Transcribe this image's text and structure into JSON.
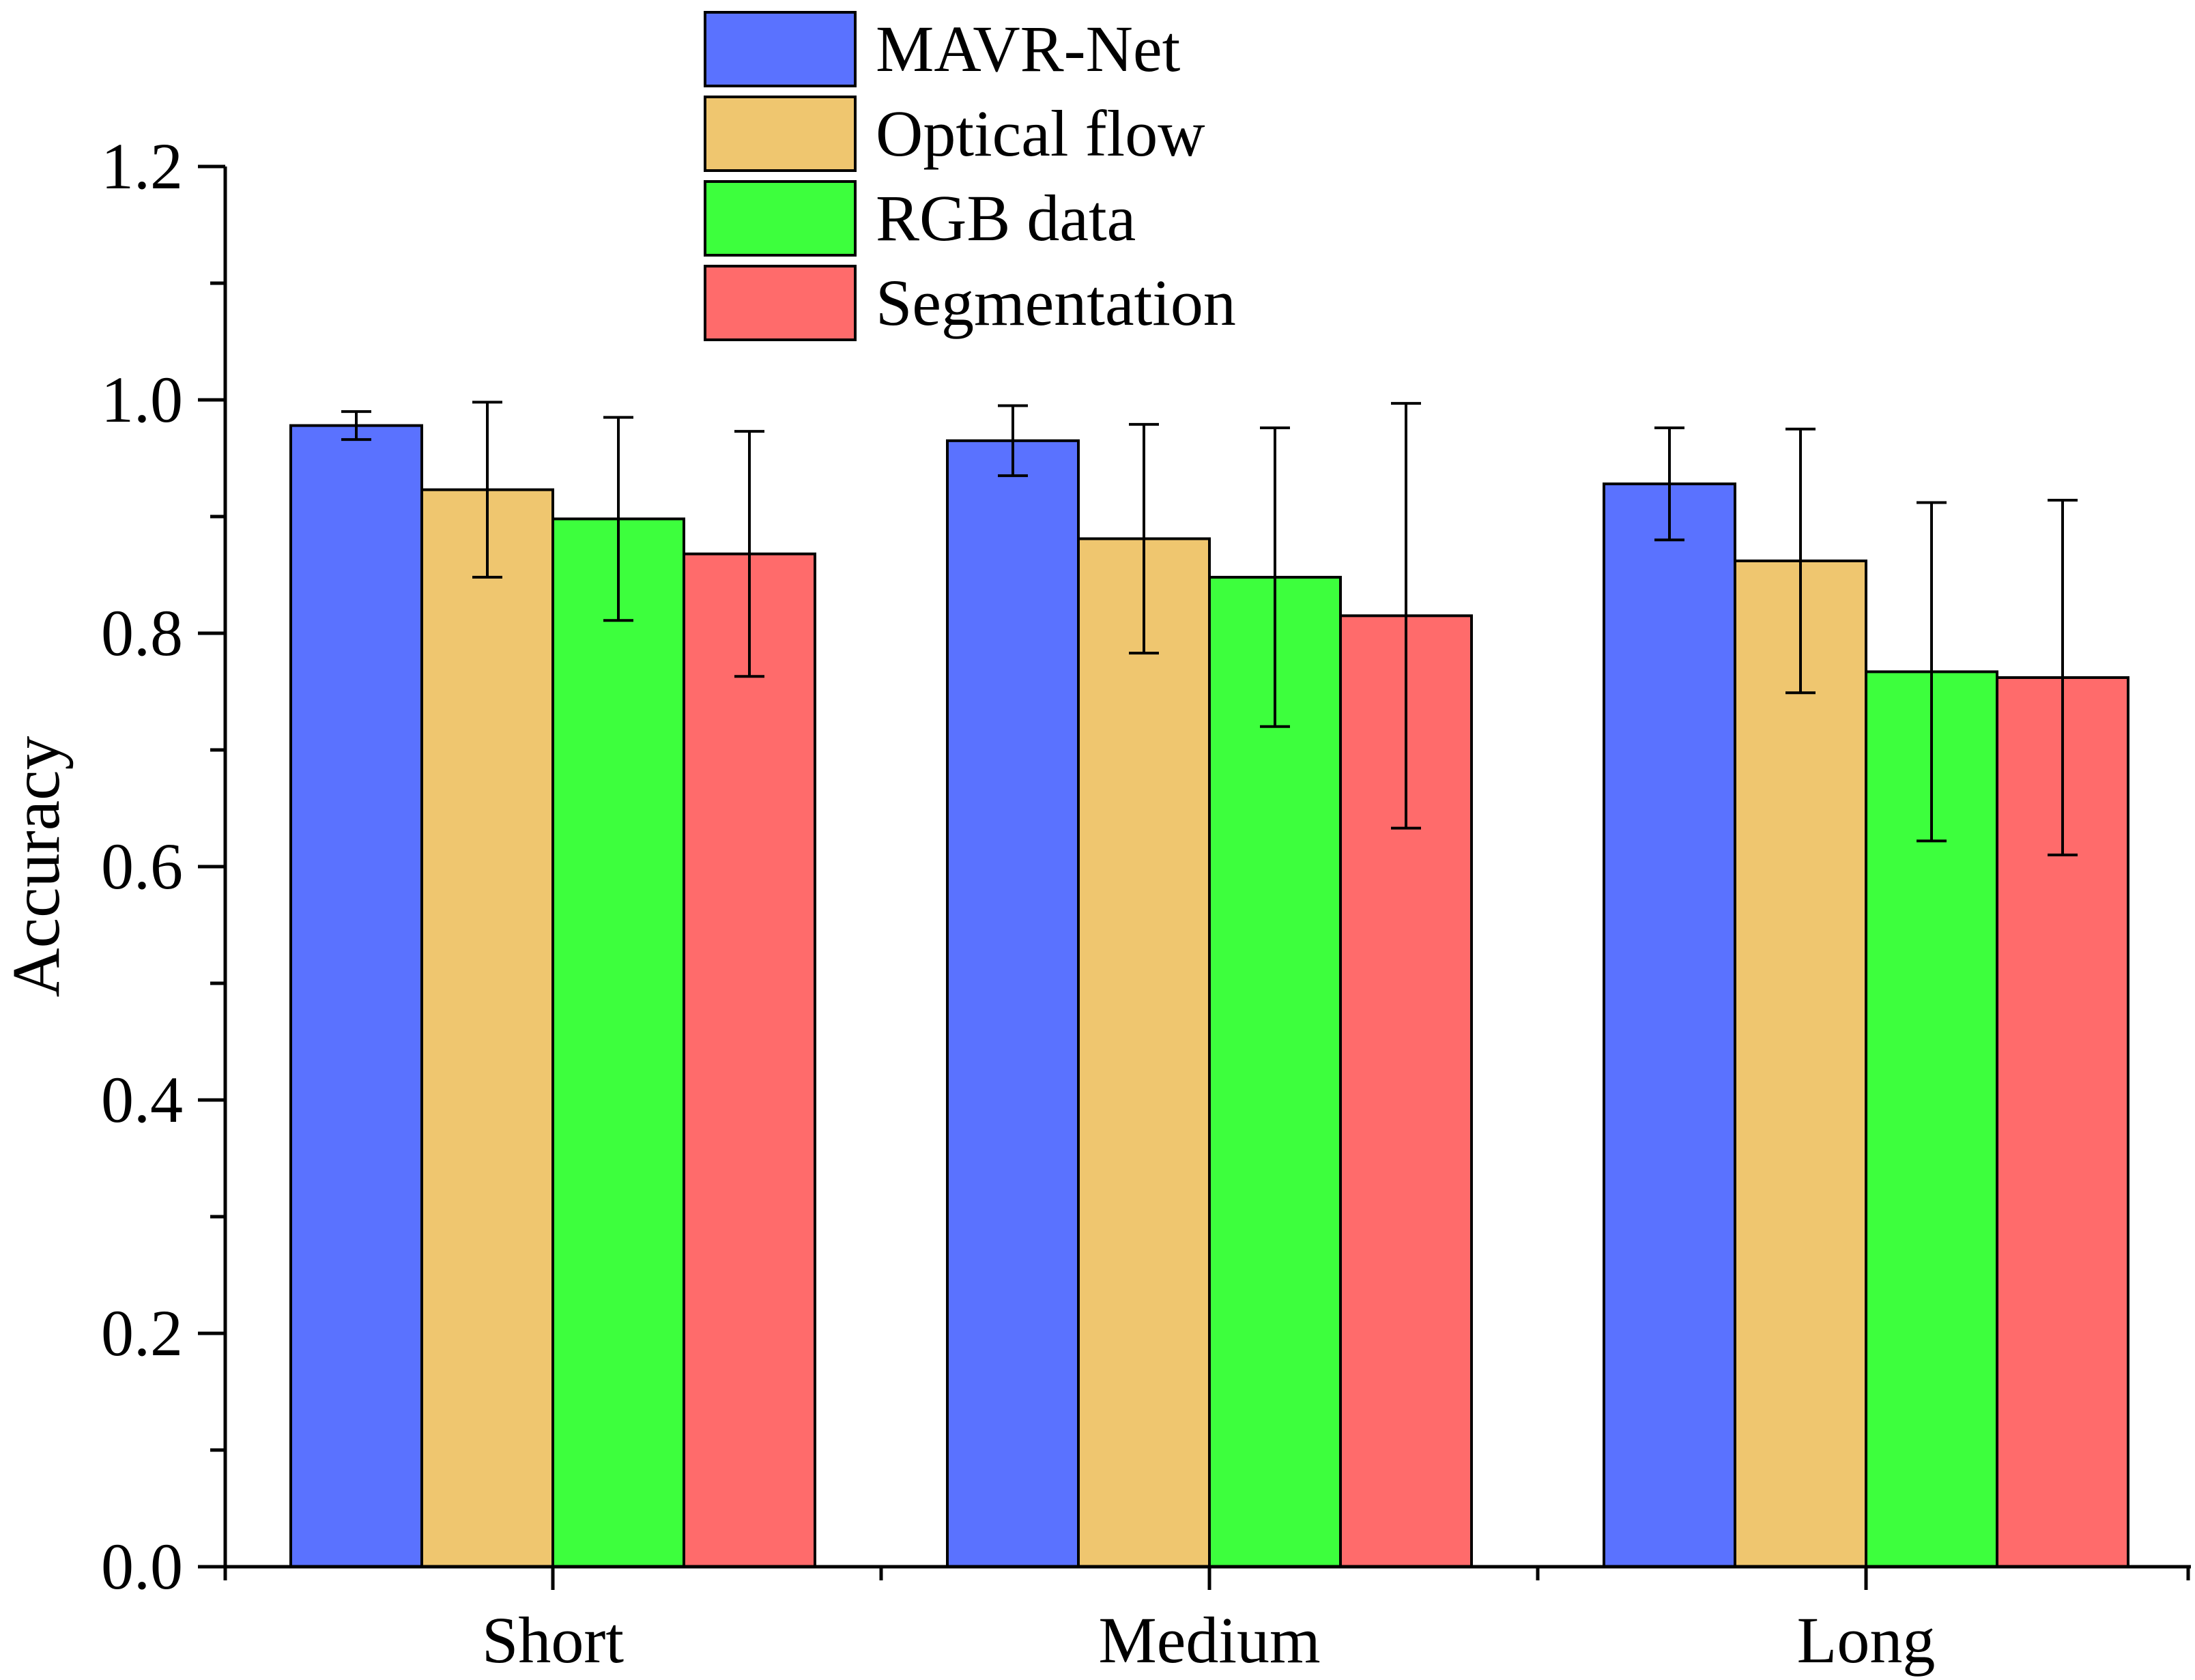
{
  "chart_data": {
    "type": "bar",
    "ylabel": "Accuracy",
    "xlabel": "",
    "ylim": [
      0,
      1.2
    ],
    "yticks": [
      "0.0",
      "0.2",
      "0.4",
      "0.6",
      "0.8",
      "1.0",
      "1.2"
    ],
    "categories": [
      "Short",
      "Medium",
      "Long"
    ],
    "legend_position": "top-center",
    "series": [
      {
        "name": "MAVR-Net",
        "color": "#5a72ff",
        "values": [
          0.978,
          0.965,
          0.928
        ],
        "errors": [
          0.012,
          0.03,
          0.048
        ]
      },
      {
        "name": "Optical flow",
        "color": "#efc66f",
        "values": [
          0.923,
          0.881,
          0.862
        ],
        "errors": [
          0.075,
          0.098,
          0.113
        ]
      },
      {
        "name": "RGB data",
        "color": "#3dff3d",
        "values": [
          0.898,
          0.848,
          0.767
        ],
        "errors": [
          0.087,
          0.128,
          0.145
        ]
      },
      {
        "name": "Segmentation",
        "color": "#ff6b6b",
        "values": [
          0.868,
          0.815,
          0.762
        ],
        "errors": [
          0.105,
          0.182,
          0.152
        ]
      }
    ]
  }
}
